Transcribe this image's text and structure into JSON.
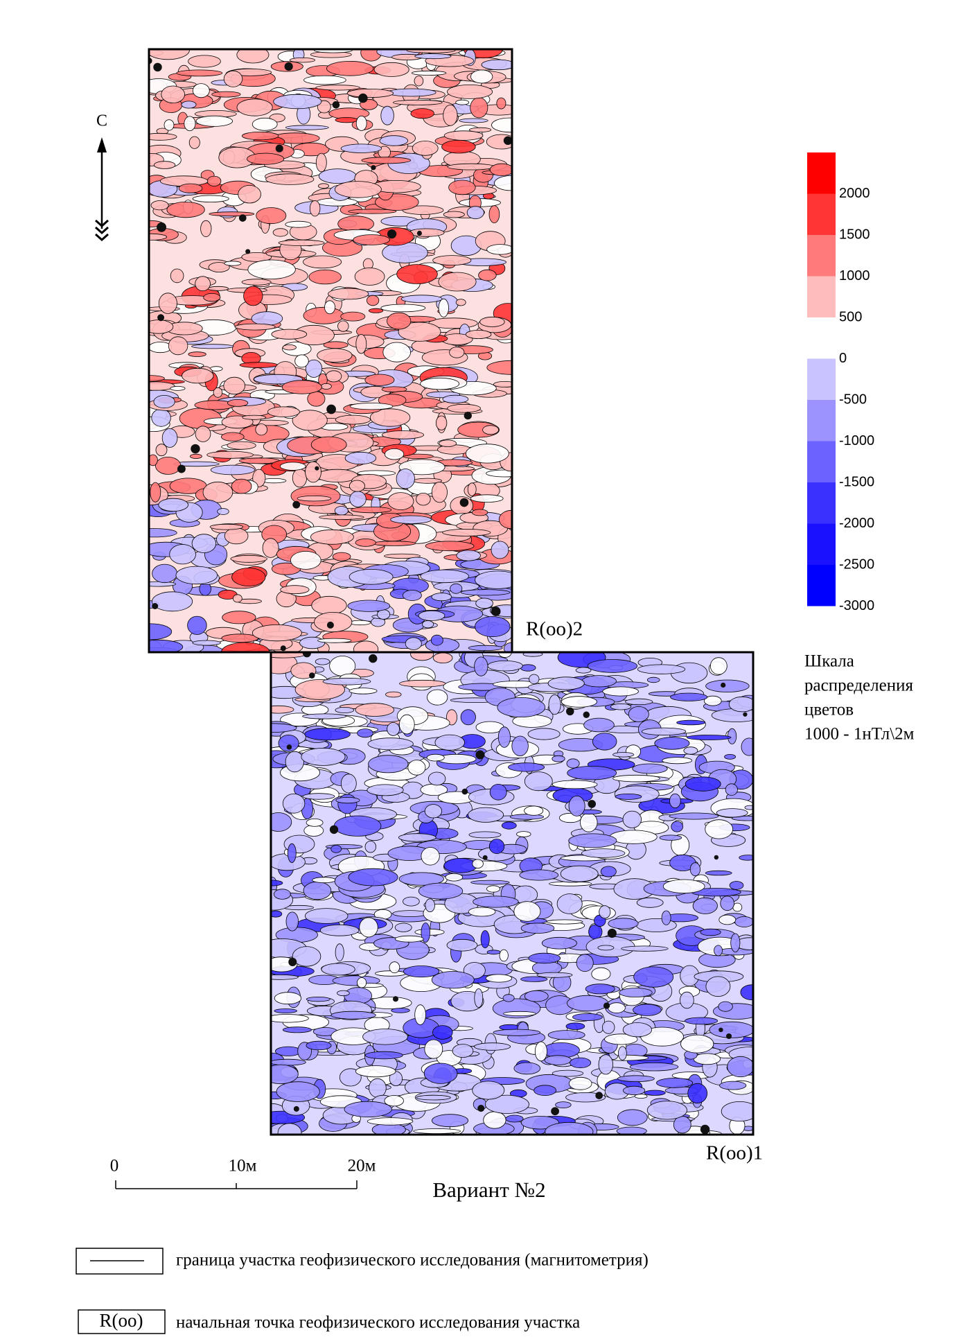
{
  "north_label": "С",
  "points": {
    "top": "R(oo)2",
    "bottom": "R(oo)1"
  },
  "colorbar": {
    "colors": [
      "#ff0000",
      "#ff3434",
      "#ff7a7a",
      "#ffbcbc",
      "#ffffff",
      "#c9c3ff",
      "#9c93ff",
      "#6c62ff",
      "#3b31ff",
      "#1a12ff",
      "#0000ff"
    ],
    "labels": [
      2000,
      1500,
      1000,
      500,
      0,
      -500,
      -1000,
      -1500,
      -2000,
      -2500,
      -3000
    ]
  },
  "scale_caption": [
    "Шкала",
    "распределения",
    "цветов",
    "1000 - 1нТл\\2м"
  ],
  "scale_bar": {
    "labels": [
      "0",
      "10м",
      "20м"
    ]
  },
  "title": "Вариант №2",
  "legend": [
    {
      "text": "граница участка геофизического исследования (магнитометрия)"
    },
    {
      "symbol": "R(oo)",
      "text": "начальная точка геофизического исследования участка"
    }
  ]
}
